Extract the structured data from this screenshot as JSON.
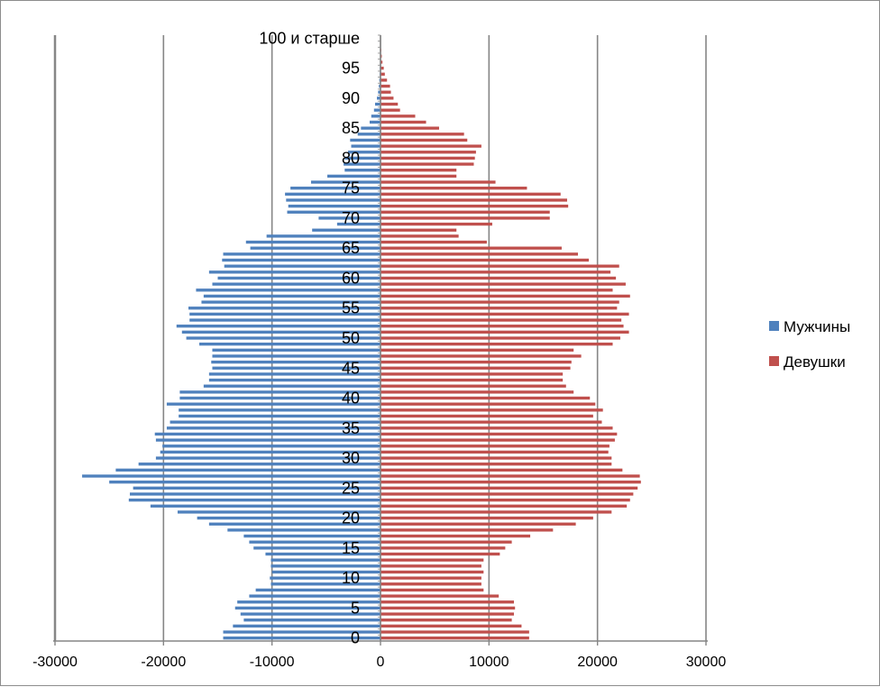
{
  "chart_data": {
    "type": "bar",
    "orientation": "horizontal",
    "title": "",
    "xlabel": "",
    "ylabel": "",
    "xlim": [
      -30000,
      30000
    ],
    "x_ticks": [
      -30000,
      -20000,
      -10000,
      0,
      10000,
      20000,
      30000
    ],
    "x_tick_labels": [
      "-30000",
      "-20000",
      "-10000",
      "0",
      "10000",
      "20000",
      "30000"
    ],
    "y_tick_labels": [
      {
        "age": 0,
        "label": "0"
      },
      {
        "age": 5,
        "label": "5"
      },
      {
        "age": 10,
        "label": "10"
      },
      {
        "age": 15,
        "label": "15"
      },
      {
        "age": 20,
        "label": "20"
      },
      {
        "age": 25,
        "label": "25"
      },
      {
        "age": 30,
        "label": "30"
      },
      {
        "age": 35,
        "label": "35"
      },
      {
        "age": 40,
        "label": "40"
      },
      {
        "age": 45,
        "label": "45"
      },
      {
        "age": 50,
        "label": "50"
      },
      {
        "age": 55,
        "label": "55"
      },
      {
        "age": 60,
        "label": "60"
      },
      {
        "age": 65,
        "label": "65"
      },
      {
        "age": 70,
        "label": "70"
      },
      {
        "age": 75,
        "label": "75"
      },
      {
        "age": 80,
        "label": "80"
      },
      {
        "age": 85,
        "label": "85"
      },
      {
        "age": 90,
        "label": "90"
      },
      {
        "age": 95,
        "label": "95"
      },
      {
        "age": 100,
        "label": "100 и старше"
      }
    ],
    "grid": "vertical",
    "legend_position": "right",
    "series": [
      {
        "name": "Мужчины",
        "color": "#4f81bd",
        "values": [
          -14500,
          -14500,
          -13600,
          -12600,
          -12900,
          -13400,
          -13200,
          -12100,
          -11500,
          -10100,
          -10200,
          -10000,
          -10100,
          -10100,
          -10600,
          -11700,
          -12100,
          -12600,
          -14100,
          -15800,
          -16900,
          -18700,
          -21200,
          -23200,
          -23100,
          -22800,
          -25000,
          -27500,
          -24400,
          -22300,
          -20700,
          -20300,
          -20100,
          -20700,
          -20800,
          -19700,
          -19400,
          -18600,
          -18600,
          -19700,
          -18500,
          -18500,
          -16300,
          -15800,
          -15800,
          -15500,
          -15600,
          -15500,
          -15500,
          -16700,
          -17900,
          -18300,
          -18800,
          -17600,
          -17600,
          -17700,
          -16500,
          -16300,
          -17000,
          -15500,
          -15000,
          -15800,
          -14400,
          -14600,
          -14500,
          -12000,
          -12400,
          -10500,
          -6300,
          -4000,
          -5700,
          -8600,
          -8500,
          -8700,
          -8800,
          -8300,
          -6400,
          -4900,
          -3300,
          -3400,
          -3300,
          -3000,
          -2700,
          -2800,
          -2100,
          -1800,
          -1000,
          -850,
          -600,
          -500,
          -330,
          -220,
          -150,
          -110,
          -80,
          -60,
          -40,
          -25,
          -15,
          -10,
          -8
        ]
      },
      {
        "name": "Девушки",
        "color": "#c0504d",
        "values": [
          13700,
          13700,
          13000,
          12100,
          12300,
          12400,
          12300,
          10900,
          9500,
          9300,
          9300,
          9500,
          9300,
          9500,
          11000,
          11500,
          12100,
          13800,
          15900,
          18000,
          19600,
          21300,
          22700,
          23000,
          23300,
          23700,
          24000,
          23900,
          22300,
          21300,
          21300,
          21000,
          21100,
          21600,
          21800,
          21400,
          20400,
          19600,
          20500,
          19800,
          19300,
          17800,
          17100,
          16800,
          16800,
          17500,
          17600,
          18500,
          17800,
          21400,
          22100,
          22900,
          22400,
          22200,
          22900,
          21800,
          22000,
          23000,
          21400,
          22600,
          21700,
          21200,
          22000,
          19200,
          18200,
          16700,
          9800,
          7200,
          7000,
          10300,
          15600,
          15600,
          17300,
          17200,
          16600,
          13500,
          10600,
          7000,
          7000,
          8600,
          8700,
          8800,
          9300,
          8000,
          7700,
          5400,
          4200,
          3200,
          1800,
          1600,
          1200,
          960,
          880,
          600,
          400,
          300,
          180,
          120,
          70,
          40,
          20
        ]
      }
    ]
  },
  "legend": {
    "items": [
      {
        "label": "Мужчины",
        "color": "#4f81bd"
      },
      {
        "label": "Девушки",
        "color": "#c0504d"
      }
    ]
  }
}
